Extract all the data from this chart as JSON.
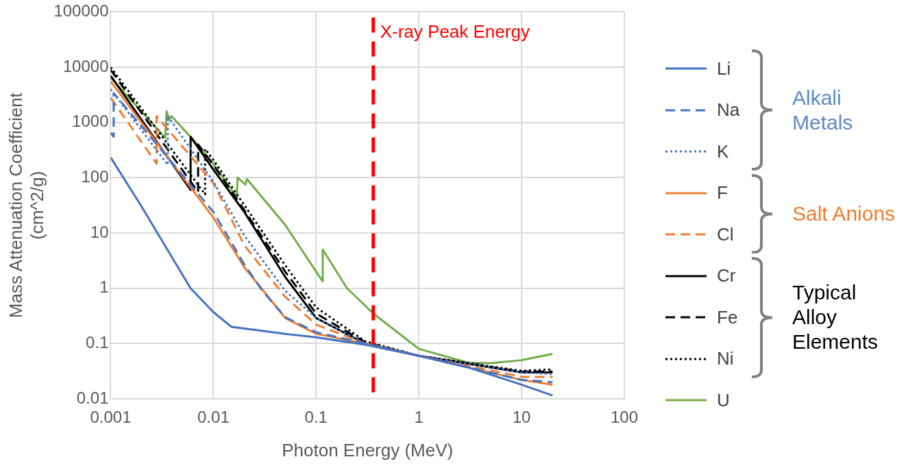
{
  "chart_data": {
    "type": "line",
    "xlabel": "Photon Energy (MeV)",
    "ylabel": "Mass Attenuation Coefficient\n(cm^2/g)",
    "log": "xy",
    "grid": true,
    "legend": "right",
    "marker": "none",
    "xlim": [
      0.001,
      100
    ],
    "xticks": [
      0.001,
      0.01,
      0.1,
      1,
      10,
      100
    ],
    "ylim": [
      0.01,
      100000
    ],
    "yticks": [
      0.01,
      0.1,
      1,
      10,
      100,
      1000,
      10000,
      100000
    ],
    "ref_lines": [
      {
        "axis": "x",
        "value": 0.36,
        "label": "X-ray Peak Energy",
        "color": "#ff0000",
        "line_style": "dashed"
      }
    ],
    "annotations": [
      "Alkali Metals",
      "Salt Anions",
      "Typical Alloy Elements"
    ],
    "series": [
      {
        "name": "Li",
        "color": "#4472c4",
        "line_style": "solid",
        "x": [
          0.001,
          0.002,
          0.004,
          0.006,
          0.01,
          0.015,
          0.05,
          0.1,
          0.3,
          1,
          3,
          10,
          20
        ],
        "values": [
          233,
          30,
          3.5,
          1,
          0.37,
          0.2,
          0.15,
          0.13,
          0.095,
          0.06,
          0.037,
          0.018,
          0.0115
        ]
      },
      {
        "name": "Na",
        "color": "#4472c4",
        "line_style": "dashed",
        "x": [
          0.001,
          0.00107,
          0.00107,
          0.01,
          0.02,
          0.03,
          0.05,
          0.1,
          0.3,
          1,
          10,
          20
        ],
        "values": [
          650,
          550,
          3400,
          24,
          2.7,
          0.9,
          0.3,
          0.16,
          0.1,
          0.06,
          0.022,
          0.02
        ]
      },
      {
        "name": "K",
        "color": "#4472c4",
        "line_style": "dotted",
        "x": [
          0.001,
          0.0036,
          0.0036,
          0.01,
          0.02,
          0.05,
          0.1,
          0.3,
          1,
          10,
          20
        ],
        "values": [
          4000,
          170,
          1300,
          85,
          9,
          0.9,
          0.29,
          0.1,
          0.06,
          0.03,
          0.028
        ]
      },
      {
        "name": "F",
        "color": "#ed7d31",
        "line_style": "solid",
        "x": [
          0.001,
          0.01,
          0.02,
          0.05,
          0.1,
          0.3,
          1,
          10,
          20
        ],
        "values": [
          5500,
          19,
          2.4,
          0.29,
          0.15,
          0.1,
          0.06,
          0.022,
          0.018
        ]
      },
      {
        "name": "Cl",
        "color": "#ed7d31",
        "line_style": "dashed",
        "x": [
          0.001,
          0.0028,
          0.0028,
          0.01,
          0.02,
          0.05,
          0.1,
          0.3,
          1,
          10,
          20
        ],
        "values": [
          2800,
          180,
          1300,
          80,
          6,
          0.7,
          0.22,
          0.1,
          0.06,
          0.025,
          0.025
        ]
      },
      {
        "name": "Cr",
        "color": "#000000",
        "line_style": "solid",
        "x": [
          0.001,
          0.006,
          0.006,
          0.01,
          0.02,
          0.05,
          0.1,
          0.3,
          1,
          10,
          20
        ],
        "values": [
          7000,
          60,
          550,
          140,
          24,
          1.6,
          0.29,
          0.1,
          0.06,
          0.03,
          0.03
        ]
      },
      {
        "name": "Fe",
        "color": "#000000",
        "line_style": "dashed",
        "x": [
          0.001,
          0.0071,
          0.0071,
          0.01,
          0.02,
          0.05,
          0.1,
          0.3,
          1,
          10,
          20
        ],
        "values": [
          9000,
          55,
          400,
          170,
          26,
          2,
          0.35,
          0.105,
          0.06,
          0.031,
          0.031
        ]
      },
      {
        "name": "Ni",
        "color": "#000000",
        "line_style": "dotted",
        "x": [
          0.001,
          0.0083,
          0.0083,
          0.01,
          0.02,
          0.05,
          0.1,
          0.3,
          1,
          10,
          20
        ],
        "values": [
          10000,
          50,
          330,
          210,
          32,
          2.6,
          0.45,
          0.11,
          0.06,
          0.032,
          0.034
        ]
      },
      {
        "name": "U",
        "color": "#70ad47",
        "line_style": "solid",
        "x": [
          0.001,
          0.0034,
          0.0035,
          0.0037,
          0.0039,
          0.006,
          0.01,
          0.0169,
          0.0172,
          0.0205,
          0.0212,
          0.05,
          0.115,
          0.116,
          0.2,
          0.36,
          1,
          3,
          5,
          10,
          20
        ],
        "values": [
          6500,
          530,
          1600,
          1100,
          1300,
          550,
          180,
          44,
          100,
          75,
          95,
          14,
          1.35,
          5,
          1,
          0.35,
          0.08,
          0.045,
          0.044,
          0.05,
          0.065
        ]
      }
    ]
  }
}
